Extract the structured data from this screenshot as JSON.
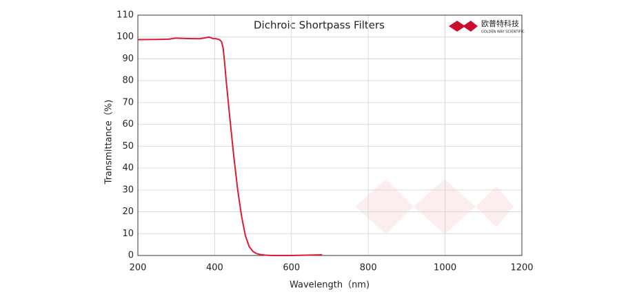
{
  "chart_data": {
    "type": "line",
    "title": "Dichroic Shortpass Filters",
    "xlabel": "Wavelength（nm)",
    "ylabel": "Transmittance（%)",
    "x": [
      200,
      250,
      280,
      300,
      330,
      360,
      375,
      385,
      395,
      405,
      412,
      418,
      422,
      426,
      430,
      435,
      440,
      450,
      460,
      470,
      480,
      490,
      500,
      510,
      520,
      535,
      550,
      600,
      650,
      680
    ],
    "series": [
      {
        "name": "Transmittance",
        "color": "#e0182d",
        "values": [
          98.8,
          98.9,
          99.0,
          99.5,
          99.3,
          99.2,
          99.6,
          100.0,
          99.3,
          99.2,
          98.8,
          97.8,
          95,
          88,
          80,
          71,
          62,
          45,
          30,
          18,
          9,
          4,
          1.8,
          0.8,
          0.4,
          0.1,
          0,
          0,
          0.2,
          0.3
        ]
      }
    ],
    "xlim": [
      200,
      1200
    ],
    "xticks": [
      200,
      400,
      600,
      800,
      1000,
      1200
    ],
    "ylim": [
      0,
      110
    ],
    "yticks": [
      0,
      10,
      20,
      30,
      40,
      50,
      60,
      70,
      80,
      90,
      100,
      110
    ],
    "grid": true
  },
  "logo": {
    "name": "欧普特科技",
    "subtitle": "GOLDEN WAY SCIENTIFIC"
  }
}
